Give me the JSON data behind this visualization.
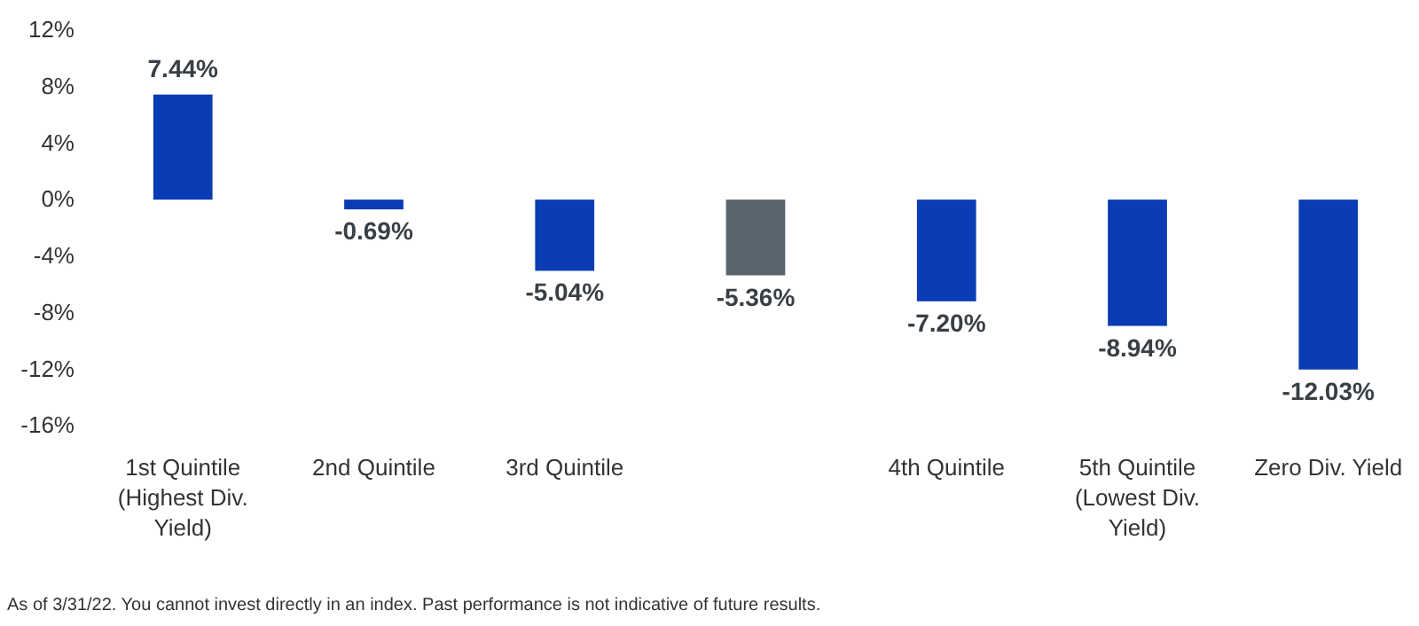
{
  "chart_data": {
    "type": "bar",
    "categories": [
      "1st Quintile (Highest Div. Yield)",
      "2nd Quintile",
      "3rd Quintile",
      null,
      "4th Quintile",
      "5th Quintile (Lowest Div. Yield)",
      "Zero Div. Yield"
    ],
    "values": [
      7.44,
      -0.69,
      -5.04,
      -5.36,
      -7.2,
      -8.94,
      -12.03
    ],
    "colors": [
      "#0a3cb4",
      "#0a3cb4",
      "#0a3cb4",
      "#5a646e",
      "#0a3cb4",
      "#0a3cb4",
      "#0a3cb4"
    ],
    "value_labels": [
      "7.44%",
      "-0.69%",
      "-5.04%",
      "-5.36%",
      "-7.20%",
      "-8.94%",
      "-12.03%"
    ],
    "ylim": [
      -16,
      12
    ],
    "yticks": [
      {
        "value": -16,
        "label": "-16%"
      },
      {
        "value": -12,
        "label": "-12%"
      },
      {
        "value": -8,
        "label": "-8%"
      },
      {
        "value": -4,
        "label": "-4%"
      },
      {
        "value": 0,
        "label": "0%"
      },
      {
        "value": 4,
        "label": "4%"
      },
      {
        "value": 8,
        "label": "8%"
      },
      {
        "value": 12,
        "label": "12%"
      }
    ],
    "grid": false,
    "annotations": [
      "As of 3/31/22. You cannot invest directly in an index. Past performance is not indicative of future results."
    ]
  }
}
